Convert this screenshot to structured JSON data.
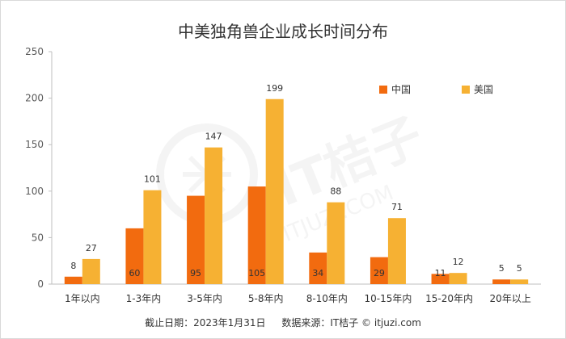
{
  "chart_data": {
    "type": "bar",
    "title": "中美独角兽企业成长时间分布",
    "categories": [
      "1年以内",
      "1-3年内",
      "3-5年内",
      "5-8年内",
      "8-10年内",
      "10-15年内",
      "15-20年内",
      "20年以上"
    ],
    "series": [
      {
        "name": "中国",
        "color": "#f26b0f",
        "values": [
          8,
          60,
          95,
          105,
          34,
          29,
          11,
          5
        ]
      },
      {
        "name": "美国",
        "color": "#f6b133",
        "values": [
          27,
          101,
          147,
          199,
          88,
          71,
          12,
          5
        ]
      }
    ],
    "ylim": [
      0,
      250
    ],
    "yticks": [
      0,
      50,
      100,
      150,
      200,
      250
    ],
    "xlabel": "",
    "ylabel": "",
    "grid": false,
    "legend_position": "top-right"
  },
  "footer": {
    "date": "截止日期：2023年1月31日",
    "source": "数据来源：IT桔子 © itjuzi.com"
  },
  "watermark": {
    "text": "IT桔子",
    "subtext": "ITJUZI.COM"
  }
}
